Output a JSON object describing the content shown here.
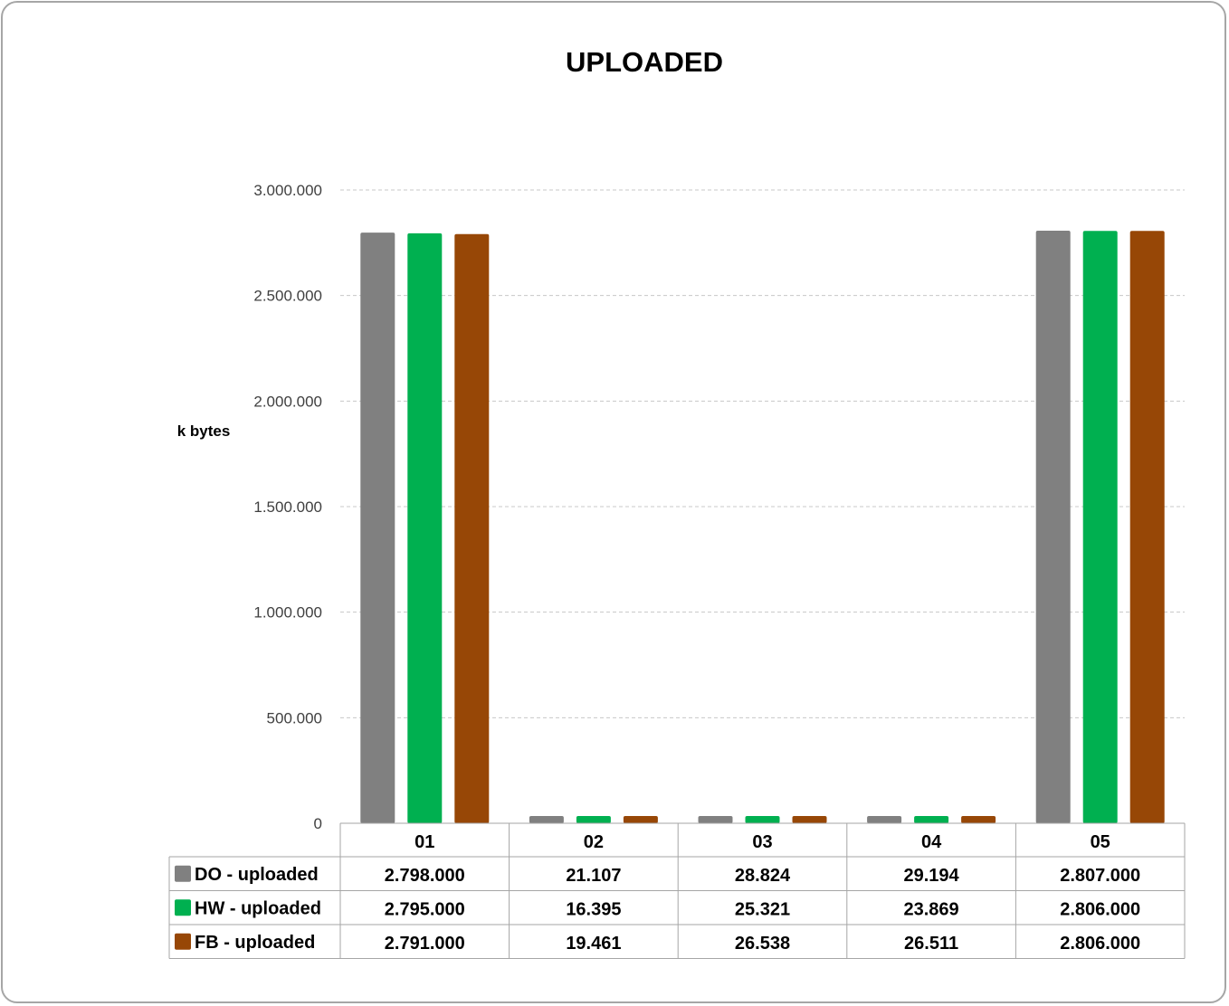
{
  "chart_data": {
    "type": "bar",
    "title": "UPLOADED",
    "ylabel": "k bytes",
    "xlabel": "",
    "categories": [
      "01",
      "02",
      "03",
      "04",
      "05"
    ],
    "ylim": [
      0,
      3000000
    ],
    "yticks": [
      0,
      500000,
      1000000,
      1500000,
      2000000,
      2500000,
      3000000
    ],
    "ytick_labels": [
      "0",
      "500.000",
      "1.000.000",
      "1.500.000",
      "2.000.000",
      "2.500.000",
      "3.000.000"
    ],
    "grid": true,
    "legend": "data-table",
    "series": [
      {
        "name": "DO - uploaded",
        "color": "#808080",
        "values": [
          2798000,
          21107,
          28824,
          29194,
          2807000
        ],
        "labels": [
          "2.798.000",
          "21.107",
          "28.824",
          "29.194",
          "2.807.000"
        ]
      },
      {
        "name": "HW - uploaded",
        "color": "#00b050",
        "values": [
          2795000,
          16395,
          25321,
          23869,
          2806000
        ],
        "labels": [
          "2.795.000",
          "16.395",
          "25.321",
          "23.869",
          "2.806.000"
        ]
      },
      {
        "name": "FB - uploaded",
        "color": "#974706",
        "values": [
          2791000,
          19461,
          26538,
          26511,
          2806000
        ],
        "labels": [
          "2.791.000",
          "19.461",
          "26.538",
          "26.511",
          "2.806.000"
        ]
      }
    ]
  }
}
